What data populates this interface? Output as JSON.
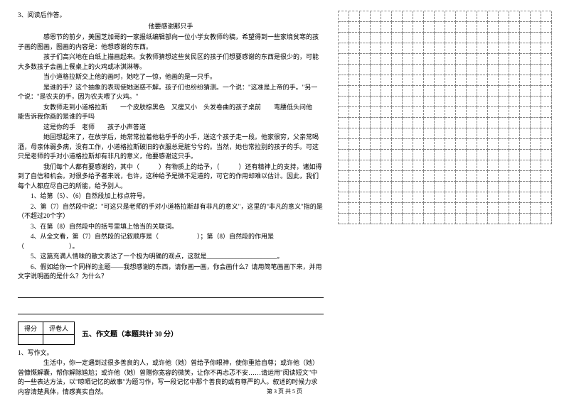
{
  "reading": {
    "q_num": "3、阅读后作答。",
    "title": "他要感谢那只手",
    "p1": "感恩节的前夕，美国芝加哥的一家报纸编辑部向一位小学女教师约稿，希望得到一些家境贫寒的孩子画的图画，图画的内容是：他想感谢的东西。",
    "p2": "孩子们高兴地在白纸上描画起来。女教师猜想这些贫民区的孩子们想要感谢的东西是很少的，可能大多数孩子会画上餐桌上的火鸡或冰淇淋等。",
    "p3": "当小道格拉斯交上他的画时，她吃了一惊，他画的是一只手。",
    "p4": "是谁的手？这个抽象的表现使她迷惑不解。孩子们也纷纷猜测。一个说：\"这准是上帝的手。\"另一个说：\"是农夫的手，因为农夫喂了火鸡。\"",
    "p5": "女教师走到小道格拉斯　　一个皮肤棕黑色　又瘦又小　头发卷曲的孩子桌前　　弯腰低头问他　　能告诉我你画的是谁的手吗",
    "p6": "这是你的手　老师　　孩子小声答道",
    "p7": "她回想起来了，在放学后，她常常拉着他粘乎乎的小手，送这个孩子走一段。他家很穷，父亲常喝酒，母亲体弱多病，没有工作，小道格拉斯破旧的衣服总是脏兮兮的。当然，她也常拉别的孩子的手。可这只是老师的手对小道格拉斯却有非凡的意义，他要感谢这只手。",
    "p8": "我们每个人都有要感谢的，其中（　　　）有物质上的给予，（　　　）还有精神上的支持，诸如得到了自信和机会。对很多给予者来说，也许，这种给予是微不足道的，可它的作用却难以估计。因此，我们每个人都应尽自己的所能，给予别人。",
    "q1": "1、给第（5）、（6）自然段加上标点符号。",
    "q2": "2、第（7）自然段中说：\"可这只是老师的手对小道格拉斯却有非凡的意义\"，这里的\"非凡的意义\"指的是（不超过20个字）",
    "q3": "3、在第（8）自然段中的括号里填上恰当的关联词。",
    "q4": "4、从全文看，第（7）自然段的记叙顺序是（　　　　　　）；第（8）自然段的作用是（　　　　　　　）。",
    "q5": "5、这篇充满人情味的散文表达了一个极为明确的观点，这就是______________________。",
    "q6": "6、假如给你一个同样的主题——我想感谢的东西，请你画一画，你会画什么？请用简笔画画下来，并用文字说明画的是什么？为什么？"
  },
  "composition": {
    "score_label1": "得分",
    "score_label2": "评卷人",
    "section_title": "五、作文题（本题共计 30 分）",
    "q_num": "1、写作文。",
    "body": "生活中，你一定遇到过很多善良的人，或许他（她）曾给予你眼神，使你重拾自尊；或许他（她）曾慷慨解囊，帮你解除尴尬；或许他（她）曾赠你宽容的微笑，让你不再忐忑不安……请运用\"阅读短文\"中的一些表达方法，以\"晾晒记忆的故事\"为题习作，写一段记忆中那个善良的或有尊严的人。叙述的时候力求内容清楚具体，情感真实自然。"
  },
  "grid": {
    "rows": 20,
    "cols": 20,
    "cell_size": 15,
    "border_color": "#888888"
  },
  "footer": "第 3 页 共 5 页",
  "colors": {
    "text": "#000000",
    "background": "#ffffff"
  }
}
